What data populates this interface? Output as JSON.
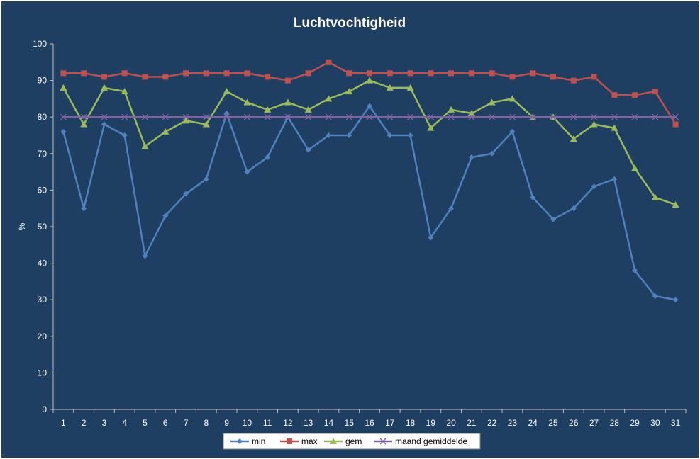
{
  "chart_data": {
    "type": "line",
    "title": "Luchtvochtigheid",
    "xlabel": "",
    "ylabel": "%",
    "ylim": [
      0,
      100
    ],
    "yticks": [
      0,
      10,
      20,
      30,
      40,
      50,
      60,
      70,
      80,
      90,
      100
    ],
    "grid": false,
    "legend_position": "bottom",
    "background_color": "#1f3f62",
    "categories": [
      "1",
      "2",
      "3",
      "4",
      "5",
      "6",
      "7",
      "8",
      "9",
      "10",
      "11",
      "12",
      "13",
      "14",
      "15",
      "16",
      "17",
      "18",
      "19",
      "20",
      "21",
      "22",
      "23",
      "24",
      "25",
      "26",
      "27",
      "28",
      "29",
      "30",
      "31"
    ],
    "series": [
      {
        "name": "min",
        "color": "#4f81bd",
        "marker": "diamond",
        "values": [
          76,
          55,
          78,
          75,
          42,
          53,
          59,
          63,
          81,
          65,
          69,
          80,
          71,
          75,
          75,
          83,
          75,
          75,
          47,
          55,
          69,
          70,
          76,
          58,
          52,
          55,
          61,
          63,
          38,
          31,
          30
        ]
      },
      {
        "name": "max",
        "color": "#c0504d",
        "marker": "square",
        "values": [
          92,
          92,
          91,
          92,
          91,
          91,
          92,
          92,
          92,
          92,
          91,
          90,
          92,
          95,
          92,
          92,
          92,
          92,
          92,
          92,
          92,
          92,
          91,
          92,
          91,
          90,
          91,
          86,
          86,
          87,
          78
        ]
      },
      {
        "name": "gem",
        "color": "#9bbb59",
        "marker": "triangle",
        "values": [
          88,
          78,
          88,
          87,
          72,
          76,
          79,
          78,
          87,
          84,
          82,
          84,
          82,
          85,
          87,
          90,
          88,
          88,
          77,
          82,
          81,
          84,
          85,
          80,
          80,
          74,
          78,
          77,
          66,
          58,
          56
        ]
      },
      {
        "name": "maand gemiddelde",
        "color": "#8064a2",
        "marker": "x",
        "values": [
          80,
          80,
          80,
          80,
          80,
          80,
          80,
          80,
          80,
          80,
          80,
          80,
          80,
          80,
          80,
          80,
          80,
          80,
          80,
          80,
          80,
          80,
          80,
          80,
          80,
          80,
          80,
          80,
          80,
          80,
          80
        ]
      }
    ]
  }
}
